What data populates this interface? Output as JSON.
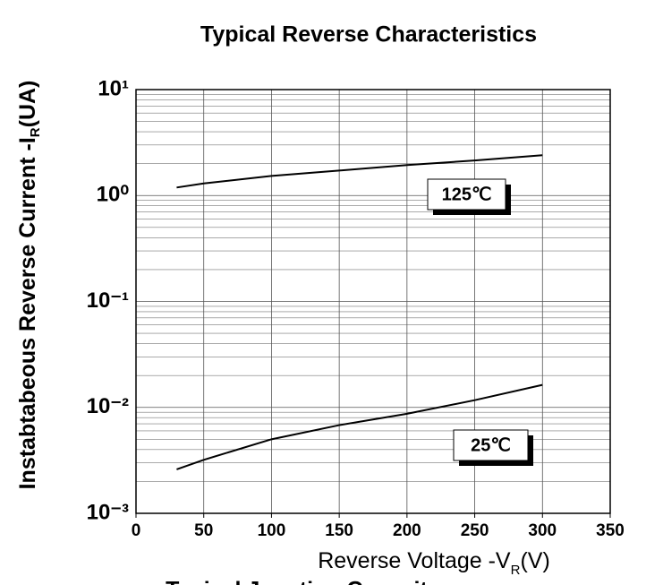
{
  "chart_data": {
    "type": "line",
    "title": "Typical Reverse Characteristics",
    "y_label": {
      "text": "Instabtabeous Reverse Current -I",
      "subscript": "R",
      "suffix": "(UA)"
    },
    "x_label": {
      "text": "Reverse  Voltage -V",
      "subscript": "R",
      "suffix": "(V)"
    },
    "next_title": "Typical Junction Capacitance",
    "log_y": true,
    "grid": true,
    "xlim": [
      0,
      350
    ],
    "xticks": [
      0,
      50,
      100,
      150,
      200,
      250,
      300,
      350
    ],
    "ylim": [
      0.001,
      10
    ],
    "yticks": [
      {
        "value": 0.001,
        "label": "10⁻³"
      },
      {
        "value": 0.01,
        "label": "10⁻²"
      },
      {
        "value": 0.1,
        "label": "10⁻¹"
      },
      {
        "value": 1,
        "label": "10⁰"
      },
      {
        "value": 10,
        "label": "10¹"
      }
    ],
    "y_minor_ticks": [
      0.002,
      0.003,
      0.004,
      0.005,
      0.006,
      0.007,
      0.008,
      0.009,
      0.02,
      0.03,
      0.04,
      0.05,
      0.06,
      0.07,
      0.08,
      0.09,
      0.2,
      0.3,
      0.4,
      0.5,
      0.6,
      0.7,
      0.8,
      0.9,
      2,
      3,
      4,
      5,
      6,
      7,
      8,
      9
    ],
    "series": [
      {
        "name": "125℃",
        "color": "#000000",
        "x": [
          30,
          50,
          100,
          150,
          200,
          250,
          300
        ],
        "values": [
          1.19,
          1.3,
          1.53,
          1.72,
          1.94,
          2.14,
          2.4
        ]
      },
      {
        "name": "25℃",
        "color": "#000000",
        "x": [
          30,
          50,
          100,
          150,
          200,
          250,
          300
        ],
        "values": [
          0.0026,
          0.0032,
          0.005,
          0.0068,
          0.0087,
          0.0117,
          0.0163
        ]
      }
    ]
  }
}
